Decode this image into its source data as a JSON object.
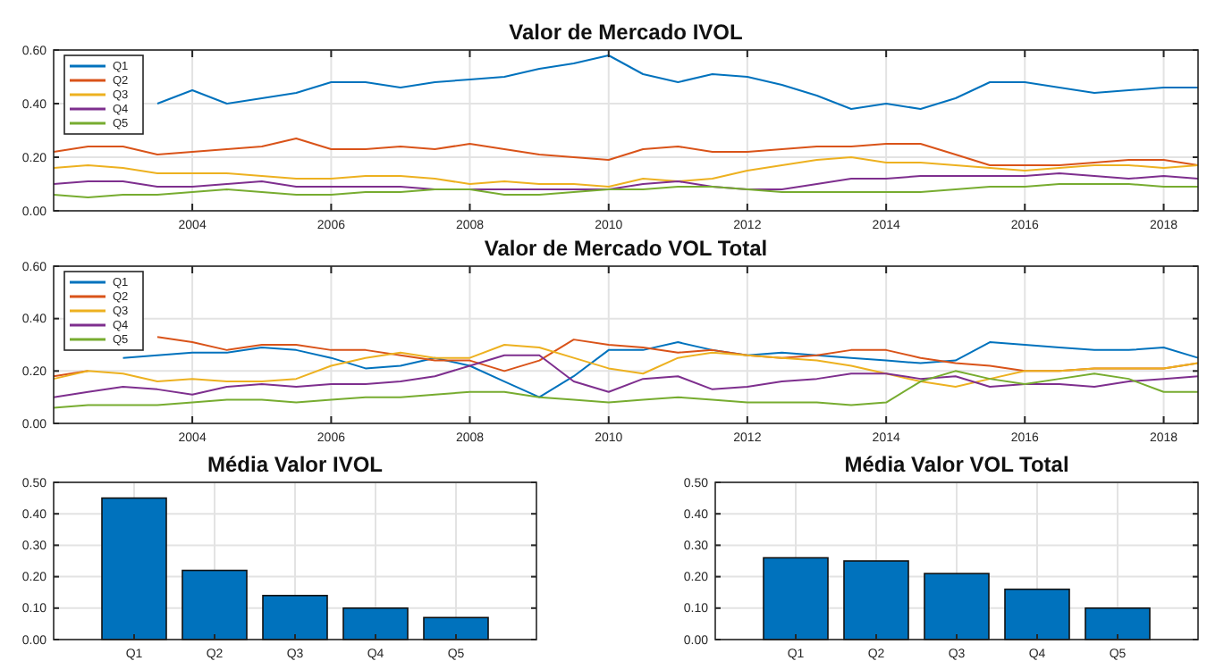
{
  "chart_data": [
    {
      "type": "line",
      "title": "Valor de Mercado IVOL",
      "x": [
        "2002-01",
        "2002-07",
        "2003-01",
        "2003-07",
        "2004-01",
        "2004-07",
        "2005-01",
        "2005-07",
        "2006-01",
        "2006-07",
        "2007-01",
        "2007-07",
        "2008-01",
        "2008-07",
        "2009-01",
        "2009-07",
        "2010-01",
        "2010-07",
        "2011-01",
        "2011-07",
        "2012-01",
        "2012-07",
        "2013-01",
        "2013-07",
        "2014-01",
        "2014-07",
        "2015-01",
        "2015-07",
        "2016-01",
        "2016-07",
        "2017-01",
        "2017-07",
        "2018-01",
        "2018-07"
      ],
      "xlim": [
        "2002-01",
        "2018-07"
      ],
      "xticks": [
        "2004",
        "2006",
        "2008",
        "2010",
        "2012",
        "2014",
        "2016",
        "2018"
      ],
      "ylim": [
        0,
        0.6
      ],
      "yticks": [
        {
          "value": 0,
          "label": "0.00"
        },
        {
          "value": 0.2,
          "label": "0.20"
        },
        {
          "value": 0.4,
          "label": "0.40"
        },
        {
          "value": 0.6,
          "label": "0.60"
        }
      ],
      "grid": true,
      "legend": "top left",
      "series": [
        {
          "name": "Q1",
          "color": "#0072bd",
          "values": [
            null,
            null,
            null,
            0.4,
            0.45,
            0.4,
            0.42,
            0.44,
            0.48,
            0.48,
            0.46,
            0.48,
            0.49,
            0.5,
            0.53,
            0.55,
            0.58,
            0.51,
            0.48,
            0.51,
            0.5,
            0.47,
            0.43,
            0.38,
            0.4,
            0.38,
            0.42,
            0.48,
            0.48,
            0.46,
            0.44,
            0.45,
            0.46,
            0.46
          ]
        },
        {
          "name": "Q2",
          "color": "#d95319",
          "values": [
            0.22,
            0.24,
            0.24,
            0.21,
            0.22,
            0.23,
            0.24,
            0.27,
            0.23,
            0.23,
            0.24,
            0.23,
            0.25,
            0.23,
            0.21,
            0.2,
            0.19,
            0.23,
            0.24,
            0.22,
            0.22,
            0.23,
            0.24,
            0.24,
            0.25,
            0.25,
            0.21,
            0.17,
            0.17,
            0.17,
            0.18,
            0.19,
            0.19,
            0.17
          ]
        },
        {
          "name": "Q3",
          "color": "#edb120",
          "values": [
            0.16,
            0.17,
            0.16,
            0.14,
            0.14,
            0.14,
            0.13,
            0.12,
            0.12,
            0.13,
            0.13,
            0.12,
            0.1,
            0.11,
            0.1,
            0.1,
            0.09,
            0.12,
            0.11,
            0.12,
            0.15,
            0.17,
            0.19,
            0.2,
            0.18,
            0.18,
            0.17,
            0.16,
            0.15,
            0.16,
            0.17,
            0.17,
            0.16,
            0.17
          ]
        },
        {
          "name": "Q4",
          "color": "#7e2f8e",
          "values": [
            0.1,
            0.11,
            0.11,
            0.09,
            0.09,
            0.1,
            0.11,
            0.09,
            0.09,
            0.09,
            0.09,
            0.08,
            0.08,
            0.08,
            0.08,
            0.08,
            0.08,
            0.1,
            0.11,
            0.09,
            0.08,
            0.08,
            0.1,
            0.12,
            0.12,
            0.13,
            0.13,
            0.13,
            0.13,
            0.14,
            0.13,
            0.12,
            0.13,
            0.12
          ]
        },
        {
          "name": "Q5",
          "color": "#77ac30",
          "values": [
            0.06,
            0.05,
            0.06,
            0.06,
            0.07,
            0.08,
            0.07,
            0.06,
            0.06,
            0.07,
            0.07,
            0.08,
            0.08,
            0.06,
            0.06,
            0.07,
            0.08,
            0.08,
            0.09,
            0.09,
            0.08,
            0.07,
            0.07,
            0.07,
            0.07,
            0.07,
            0.08,
            0.09,
            0.09,
            0.1,
            0.1,
            0.1,
            0.09,
            0.09
          ]
        }
      ]
    },
    {
      "type": "line",
      "title": "Valor de Mercado VOL Total",
      "x": [
        "2002-01",
        "2002-07",
        "2003-01",
        "2003-07",
        "2004-01",
        "2004-07",
        "2005-01",
        "2005-07",
        "2006-01",
        "2006-07",
        "2007-01",
        "2007-07",
        "2008-01",
        "2008-07",
        "2009-01",
        "2009-07",
        "2010-01",
        "2010-07",
        "2011-01",
        "2011-07",
        "2012-01",
        "2012-07",
        "2013-01",
        "2013-07",
        "2014-01",
        "2014-07",
        "2015-01",
        "2015-07",
        "2016-01",
        "2016-07",
        "2017-01",
        "2017-07",
        "2018-01",
        "2018-07"
      ],
      "xlim": [
        "2002-01",
        "2018-07"
      ],
      "xticks": [
        "2004",
        "2006",
        "2008",
        "2010",
        "2012",
        "2014",
        "2016",
        "2018"
      ],
      "ylim": [
        0,
        0.6
      ],
      "yticks": [
        {
          "value": 0,
          "label": "0.00"
        },
        {
          "value": 0.2,
          "label": "0.20"
        },
        {
          "value": 0.4,
          "label": "0.40"
        },
        {
          "value": 0.6,
          "label": "0.60"
        }
      ],
      "grid": true,
      "legend": "top left",
      "series": [
        {
          "name": "Q1",
          "color": "#0072bd",
          "values": [
            null,
            null,
            0.25,
            0.26,
            0.27,
            0.27,
            0.29,
            0.28,
            0.25,
            0.21,
            0.22,
            0.25,
            0.22,
            0.16,
            0.1,
            0.18,
            0.28,
            0.28,
            0.31,
            0.28,
            0.26,
            0.27,
            0.26,
            0.25,
            0.24,
            0.23,
            0.24,
            0.31,
            0.3,
            0.29,
            0.28,
            0.28,
            0.29,
            0.25
          ]
        },
        {
          "name": "Q2",
          "color": "#d95319",
          "values": [
            0.18,
            0.2,
            null,
            0.33,
            0.31,
            0.28,
            0.3,
            0.3,
            0.28,
            0.28,
            0.26,
            0.24,
            0.24,
            0.2,
            0.24,
            0.32,
            0.3,
            0.29,
            0.27,
            0.28,
            0.26,
            0.25,
            0.26,
            0.28,
            0.28,
            0.25,
            0.23,
            0.22,
            0.2,
            0.2,
            0.21,
            0.21,
            0.21,
            0.23
          ]
        },
        {
          "name": "Q3",
          "color": "#edb120",
          "values": [
            0.17,
            0.2,
            0.19,
            0.16,
            0.17,
            0.16,
            0.16,
            0.17,
            0.22,
            0.25,
            0.27,
            0.25,
            0.25,
            0.3,
            0.29,
            0.25,
            0.21,
            0.19,
            0.25,
            0.27,
            0.26,
            0.25,
            0.24,
            0.22,
            0.19,
            0.16,
            0.14,
            0.17,
            0.2,
            0.2,
            0.21,
            0.21,
            0.21,
            0.23
          ]
        },
        {
          "name": "Q4",
          "color": "#7e2f8e",
          "values": [
            0.1,
            0.12,
            0.14,
            0.13,
            0.11,
            0.14,
            0.15,
            0.14,
            0.15,
            0.15,
            0.16,
            0.18,
            0.22,
            0.26,
            0.26,
            0.16,
            0.12,
            0.17,
            0.18,
            0.13,
            0.14,
            0.16,
            0.17,
            0.19,
            0.19,
            0.17,
            0.18,
            0.14,
            0.15,
            0.15,
            0.14,
            0.16,
            0.17,
            0.18
          ]
        },
        {
          "name": "Q5",
          "color": "#77ac30",
          "values": [
            0.06,
            0.07,
            0.07,
            0.07,
            0.08,
            0.09,
            0.09,
            0.08,
            0.09,
            0.1,
            0.1,
            0.11,
            0.12,
            0.12,
            0.1,
            0.09,
            0.08,
            0.09,
            0.1,
            0.09,
            0.08,
            0.08,
            0.08,
            0.07,
            0.08,
            0.16,
            0.2,
            0.17,
            0.15,
            0.17,
            0.19,
            0.17,
            0.12,
            0.12
          ]
        }
      ]
    },
    {
      "type": "bar",
      "title": "Média Valor IVOL",
      "categories": [
        "Q1",
        "Q2",
        "Q3",
        "Q4",
        "Q5"
      ],
      "values": [
        0.45,
        0.22,
        0.14,
        0.1,
        0.07
      ],
      "color": "#0072bd",
      "ylim": [
        0,
        0.5
      ],
      "yticks": [
        {
          "value": 0,
          "label": "0.00"
        },
        {
          "value": 0.1,
          "label": "0.10"
        },
        {
          "value": 0.2,
          "label": "0.20"
        },
        {
          "value": 0.3,
          "label": "0.30"
        },
        {
          "value": 0.4,
          "label": "0.40"
        },
        {
          "value": 0.5,
          "label": "0.50"
        }
      ],
      "grid": true
    },
    {
      "type": "bar",
      "title": "Média Valor VOL Total",
      "categories": [
        "Q1",
        "Q2",
        "Q3",
        "Q4",
        "Q5"
      ],
      "values": [
        0.26,
        0.25,
        0.21,
        0.16,
        0.1
      ],
      "color": "#0072bd",
      "ylim": [
        0,
        0.5
      ],
      "yticks": [
        {
          "value": 0,
          "label": "0.00"
        },
        {
          "value": 0.1,
          "label": "0.10"
        },
        {
          "value": 0.2,
          "label": "0.20"
        },
        {
          "value": 0.3,
          "label": "0.30"
        },
        {
          "value": 0.4,
          "label": "0.40"
        },
        {
          "value": 0.5,
          "label": "0.50"
        }
      ],
      "grid": true
    }
  ]
}
